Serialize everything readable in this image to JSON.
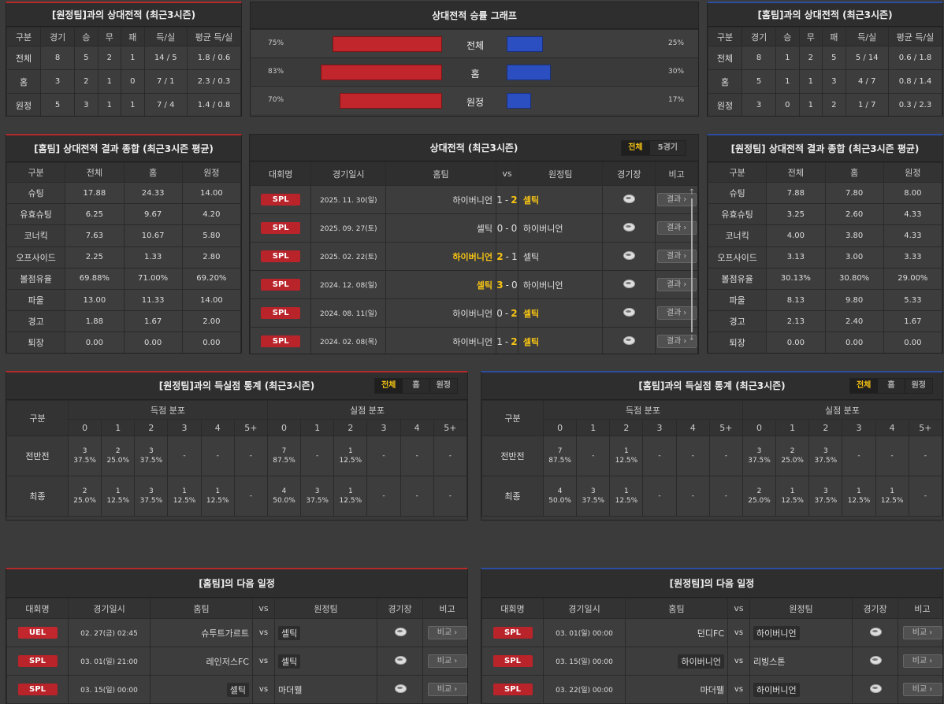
{
  "h2h_away": {
    "title": "[원정팀]과의 상대전적 (최근3시즌)",
    "headers": [
      "구분",
      "경기",
      "승",
      "무",
      "패",
      "득/실",
      "평균 득/실"
    ],
    "rows": [
      [
        "전체",
        "8",
        "5",
        "2",
        "1",
        "14 / 5",
        "1.8 / 0.6"
      ],
      [
        "홈",
        "3",
        "2",
        "1",
        "0",
        "7 / 1",
        "2.3 / 0.3"
      ],
      [
        "원정",
        "5",
        "3",
        "1",
        "1",
        "7 / 4",
        "1.4 / 0.8"
      ]
    ]
  },
  "graph": {
    "title": "상대전적 승률 그래프",
    "rows": [
      {
        "label": "전체",
        "left": "75%",
        "right": "25%",
        "lv": 75,
        "rv": 25
      },
      {
        "label": "홈",
        "left": "83%",
        "right": "30%",
        "lv": 83,
        "rv": 30
      },
      {
        "label": "원정",
        "left": "70%",
        "right": "17%",
        "lv": 70,
        "rv": 17
      }
    ],
    "left_color": "#c0262c",
    "right_color": "#2b4fc0"
  },
  "h2h_home": {
    "title": "[홈팀]과의 상대전적 (최근3시즌)",
    "headers": [
      "구분",
      "경기",
      "승",
      "무",
      "패",
      "득/실",
      "평균 득/실"
    ],
    "rows": [
      [
        "전체",
        "8",
        "1",
        "2",
        "5",
        "5 / 14",
        "0.6 / 1.8"
      ],
      [
        "홈",
        "5",
        "1",
        "1",
        "3",
        "4 / 7",
        "0.8 / 1.4"
      ],
      [
        "원정",
        "3",
        "0",
        "1",
        "2",
        "1 / 7",
        "0.3 / 2.3"
      ]
    ]
  },
  "sum_home": {
    "title": "[홈팀] 상대전적 결과 종합 (최근3시즌 평균)",
    "headers": [
      "구분",
      "전체",
      "홈",
      "원정"
    ],
    "rows": [
      [
        "슈팅",
        "17.88",
        "24.33",
        "14.00"
      ],
      [
        "유효슈팅",
        "6.25",
        "9.67",
        "4.20"
      ],
      [
        "코너킥",
        "7.63",
        "10.67",
        "5.80"
      ],
      [
        "오프사이드",
        "2.25",
        "1.33",
        "2.80"
      ],
      [
        "볼점유율",
        "69.88%",
        "71.00%",
        "69.20%"
      ],
      [
        "파울",
        "13.00",
        "11.33",
        "14.00"
      ],
      [
        "경고",
        "1.88",
        "1.67",
        "2.00"
      ],
      [
        "퇴장",
        "0.00",
        "0.00",
        "0.00"
      ]
    ]
  },
  "sum_away": {
    "title": "[원정팀] 상대전적 결과 종합 (최근3시즌 평균)",
    "headers": [
      "구분",
      "전체",
      "홈",
      "원정"
    ],
    "rows": [
      [
        "슈팅",
        "7.88",
        "7.80",
        "8.00"
      ],
      [
        "유효슈팅",
        "3.25",
        "2.60",
        "4.33"
      ],
      [
        "코너킥",
        "4.00",
        "3.80",
        "4.33"
      ],
      [
        "오프사이드",
        "3.13",
        "3.00",
        "3.33"
      ],
      [
        "볼점유율",
        "30.13%",
        "30.80%",
        "29.00%"
      ],
      [
        "파울",
        "8.13",
        "9.80",
        "5.33"
      ],
      [
        "경고",
        "2.13",
        "2.40",
        "1.67"
      ],
      [
        "퇴장",
        "0.00",
        "0.00",
        "0.00"
      ]
    ]
  },
  "matches": {
    "title": "상대전적 (최근3시즌)",
    "tabs": [
      "전체",
      "5경기"
    ],
    "headers": [
      "대회명",
      "경기일시",
      "홈팀",
      "vs",
      "원정팀",
      "경기장",
      "비고"
    ],
    "btn": "결과",
    "rows": [
      {
        "comp": "SPL",
        "date": "2025. 11. 30(일)",
        "home": "하이버니언",
        "hs": "1",
        "as": "2",
        "away": "셀틱",
        "winner": "away"
      },
      {
        "comp": "SPL",
        "date": "2025. 09. 27(토)",
        "home": "셀틱",
        "hs": "0",
        "as": "0",
        "away": "하이버니언",
        "winner": "none"
      },
      {
        "comp": "SPL",
        "date": "2025. 02. 22(토)",
        "home": "하이버니언",
        "hs": "2",
        "as": "1",
        "away": "셀틱",
        "winner": "home"
      },
      {
        "comp": "SPL",
        "date": "2024. 12. 08(일)",
        "home": "셀틱",
        "hs": "3",
        "as": "0",
        "away": "하이버니언",
        "winner": "home"
      },
      {
        "comp": "SPL",
        "date": "2024. 08. 11(일)",
        "home": "하이버니언",
        "hs": "0",
        "as": "2",
        "away": "셀틱",
        "winner": "away"
      },
      {
        "comp": "SPL",
        "date": "2024. 02. 08(목)",
        "home": "하이버니언",
        "hs": "1",
        "as": "2",
        "away": "셀틱",
        "winner": "away"
      }
    ]
  },
  "goals_away": {
    "title": "[원정팀]과의 득실점 통계 (최근3시즌)",
    "tabs": [
      "전체",
      "홈",
      "원정"
    ],
    "group_header": "구분",
    "scored": "득점 분포",
    "conceded": "실점 분포",
    "cols": [
      "0",
      "1",
      "2",
      "3",
      "4",
      "5+",
      "0",
      "1",
      "2",
      "3",
      "4",
      "5+"
    ],
    "rows": [
      {
        "label": "전반전",
        "cells": [
          [
            "3",
            "37.5%"
          ],
          [
            "2",
            "25.0%"
          ],
          [
            "3",
            "37.5%"
          ],
          [
            "-",
            ""
          ],
          [
            "-",
            ""
          ],
          [
            "-",
            ""
          ],
          [
            "7",
            "87.5%"
          ],
          [
            "-",
            ""
          ],
          [
            "1",
            "12.5%"
          ],
          [
            "-",
            ""
          ],
          [
            "-",
            ""
          ],
          [
            "-",
            ""
          ]
        ]
      },
      {
        "label": "최종",
        "cells": [
          [
            "2",
            "25.0%"
          ],
          [
            "1",
            "12.5%"
          ],
          [
            "3",
            "37.5%"
          ],
          [
            "1",
            "12.5%"
          ],
          [
            "1",
            "12.5%"
          ],
          [
            "-",
            ""
          ],
          [
            "4",
            "50.0%"
          ],
          [
            "3",
            "37.5%"
          ],
          [
            "1",
            "12.5%"
          ],
          [
            "-",
            ""
          ],
          [
            "-",
            ""
          ],
          [
            "-",
            ""
          ]
        ]
      }
    ]
  },
  "goals_home": {
    "title": "[홈팀]과의 득실점 통계 (최근3시즌)",
    "tabs": [
      "전체",
      "홈",
      "원정"
    ],
    "group_header": "구분",
    "scored": "득점 분포",
    "conceded": "실점 분포",
    "cols": [
      "0",
      "1",
      "2",
      "3",
      "4",
      "5+",
      "0",
      "1",
      "2",
      "3",
      "4",
      "5+"
    ],
    "rows": [
      {
        "label": "전반전",
        "cells": [
          [
            "7",
            "87.5%"
          ],
          [
            "-",
            ""
          ],
          [
            "1",
            "12.5%"
          ],
          [
            "-",
            ""
          ],
          [
            "-",
            ""
          ],
          [
            "-",
            ""
          ],
          [
            "3",
            "37.5%"
          ],
          [
            "2",
            "25.0%"
          ],
          [
            "3",
            "37.5%"
          ],
          [
            "-",
            ""
          ],
          [
            "-",
            ""
          ],
          [
            "-",
            ""
          ]
        ]
      },
      {
        "label": "최종",
        "cells": [
          [
            "4",
            "50.0%"
          ],
          [
            "3",
            "37.5%"
          ],
          [
            "1",
            "12.5%"
          ],
          [
            "-",
            ""
          ],
          [
            "-",
            ""
          ],
          [
            "-",
            ""
          ],
          [
            "2",
            "25.0%"
          ],
          [
            "1",
            "12.5%"
          ],
          [
            "3",
            "37.5%"
          ],
          [
            "1",
            "12.5%"
          ],
          [
            "1",
            "12.5%"
          ],
          [
            "-",
            ""
          ]
        ]
      }
    ]
  },
  "next_home": {
    "title": "[홈팀]의 다음 일정",
    "headers": [
      "대회명",
      "경기일시",
      "홈팀",
      "vs",
      "원정팀",
      "경기장",
      "비고"
    ],
    "btn": "비교",
    "rows": [
      {
        "comp": "UEL",
        "date": "02. 27(금) 02:45",
        "home": "슈투트가르트",
        "away": "셀틱",
        "hl": "away"
      },
      {
        "comp": "SPL",
        "date": "03. 01(일) 21:00",
        "home": "레인저스FC",
        "away": "셀틱",
        "hl": "away"
      },
      {
        "comp": "SPL",
        "date": "03. 15(일) 00:00",
        "home": "셀틱",
        "away": "마더웰",
        "hl": "home"
      }
    ]
  },
  "next_away": {
    "title": "[원정팀]의 다음 일정",
    "headers": [
      "대회명",
      "경기일시",
      "홈팀",
      "vs",
      "원정팀",
      "경기장",
      "비고"
    ],
    "btn": "비교",
    "rows": [
      {
        "comp": "SPL",
        "date": "03. 01(일) 00:00",
        "home": "던디FC",
        "away": "하이버니언",
        "hl": "away"
      },
      {
        "comp": "SPL",
        "date": "03. 15(일) 00:00",
        "home": "하이버니언",
        "away": "리빙스톤",
        "hl": "home"
      },
      {
        "comp": "SPL",
        "date": "03. 22(일) 00:00",
        "home": "마더웰",
        "away": "하이버니언",
        "hl": "away"
      }
    ]
  }
}
